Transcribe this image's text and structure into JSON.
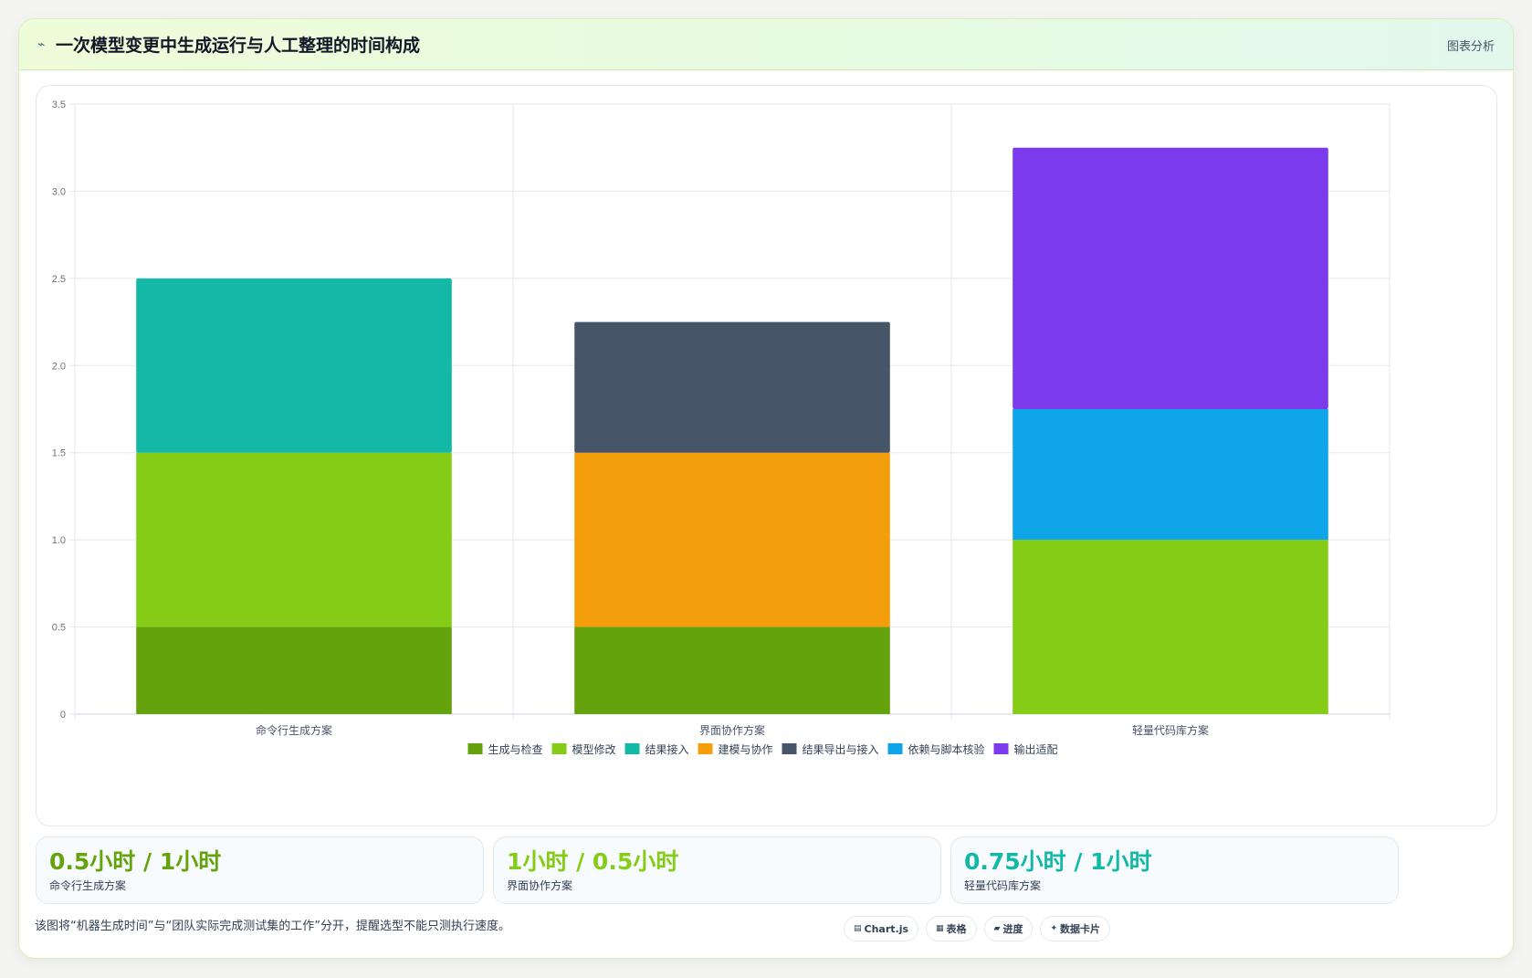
{
  "header": {
    "icon": "pulse-icon",
    "title": "一次模型变更中生成运行与人工整理的时间构成",
    "tag": "图表分析"
  },
  "chart_data": {
    "type": "bar",
    "stacked": true,
    "categories": [
      "命令行生成方案",
      "界面协作方案",
      "轻量代码库方案"
    ],
    "series": [
      {
        "name": "生成与检查",
        "color": "#65a30d",
        "values": [
          0.5,
          0.5,
          0
        ]
      },
      {
        "name": "模型修改",
        "color": "#84cc16",
        "values": [
          1.0,
          0,
          1.0
        ]
      },
      {
        "name": "结果接入",
        "color": "#14b8a6",
        "values": [
          1.0,
          0,
          0
        ]
      },
      {
        "name": "建模与协作",
        "color": "#f59e0b",
        "values": [
          0,
          1.0,
          0
        ]
      },
      {
        "name": "结果导出与接入",
        "color": "#475569",
        "values": [
          0,
          0.75,
          0
        ]
      },
      {
        "name": "依赖与脚本核验",
        "color": "#0ea5e9",
        "values": [
          0,
          0,
          0.75
        ]
      },
      {
        "name": "输出适配",
        "color": "#7c3aed",
        "values": [
          0,
          0,
          1.5
        ]
      }
    ],
    "ylim": [
      0,
      3.5
    ],
    "yticks": [
      "0",
      "0.5",
      "1.0",
      "1.5",
      "2.0",
      "2.5",
      "3.0",
      "3.5"
    ],
    "grid": true,
    "legend": "bottom"
  },
  "stats": [
    {
      "value": "0.5小时 / 1小时",
      "label": "命令行生成方案",
      "color": "#65a30d"
    },
    {
      "value": "1小时 / 0.5小时",
      "label": "界面协作方案",
      "color": "#84cc16"
    },
    {
      "value": "0.75小时 / 1小时",
      "label": "轻量代码库方案",
      "color": "#14b8a6"
    }
  ],
  "note": "该图将“机器生成时间”与“团队实际完成测试集的工作”分开，提醒选型不能只测执行速度。",
  "chips": [
    {
      "icon": "▤",
      "label": "Chart.js"
    },
    {
      "icon": "▦",
      "label": "表格"
    },
    {
      "icon": "▰",
      "label": "进度"
    },
    {
      "icon": "✦",
      "label": "数据卡片"
    }
  ]
}
